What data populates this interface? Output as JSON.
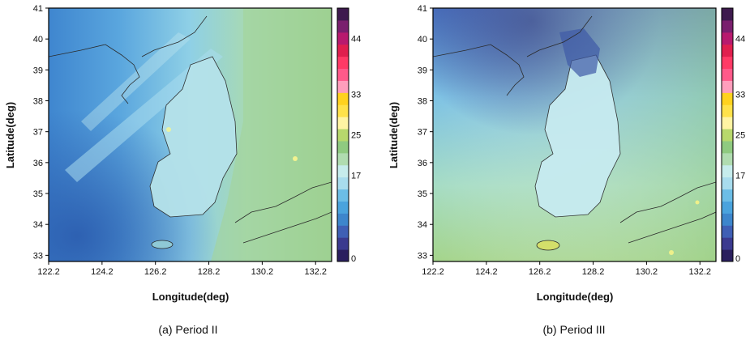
{
  "figure": {
    "panels": [
      {
        "caption": "(a) Period II",
        "x_axis_label": "Longitude(deg)",
        "y_axis_label": "Latitude(deg)"
      },
      {
        "caption": "(b) Period III",
        "x_axis_label": "Longitude(deg)",
        "y_axis_label": "Latitude(deg)"
      }
    ],
    "x_ticks": [
      "122.2",
      "124.2",
      "126.2",
      "128.2",
      "130.2",
      "132.2"
    ],
    "y_ticks": [
      "33",
      "34",
      "35",
      "36",
      "37",
      "38",
      "39",
      "40",
      "41"
    ],
    "colorbar_ticks": [
      "0",
      "17",
      "25",
      "33",
      "44"
    ],
    "colorbar_colors": [
      "#2a1f5e",
      "#3b3a8f",
      "#3f5fb5",
      "#3d86cc",
      "#4aa3dd",
      "#6cbde6",
      "#a8dced",
      "#c6ecec",
      "#b0dcb0",
      "#8fca80",
      "#b7d86c",
      "#fff4a3",
      "#ffe24a",
      "#ffd21f",
      "#ff9ebc",
      "#ff5a8a",
      "#ff3a66",
      "#e01f4e",
      "#b81a6e",
      "#7a1f6e",
      "#3e1a4e"
    ]
  },
  "chart_data": [
    {
      "type": "heatmap",
      "title": "(a) Period II",
      "xlabel": "Longitude(deg)",
      "ylabel": "Latitude(deg)",
      "xlim": [
        122.2,
        132.8
      ],
      "ylim": [
        32.8,
        41
      ],
      "colorbar_range": [
        0,
        50
      ],
      "colorbar_ticks": [
        0,
        17,
        25,
        33,
        44
      ]
    },
    {
      "type": "heatmap",
      "title": "(b) Period III",
      "xlabel": "Longitude(deg)",
      "ylabel": "Latitude(deg)",
      "xlim": [
        122.2,
        132.8
      ],
      "ylim": [
        32.8,
        41
      ],
      "colorbar_range": [
        0,
        50
      ],
      "colorbar_ticks": [
        0,
        17,
        25,
        33,
        44
      ]
    }
  ]
}
